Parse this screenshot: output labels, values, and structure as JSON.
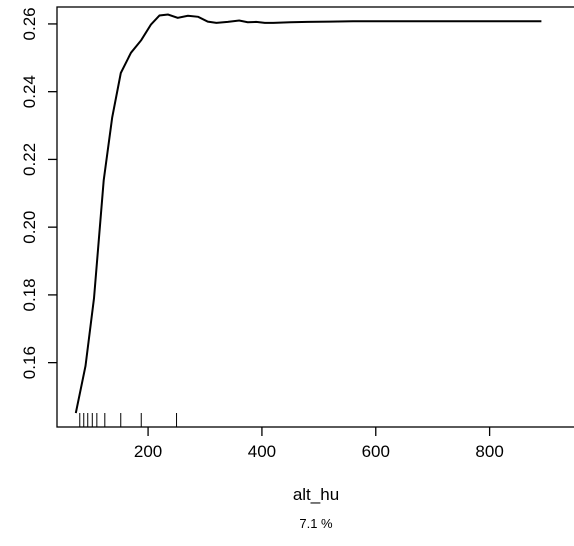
{
  "chart_data": {
    "type": "line",
    "xlabel": "alt_hu",
    "subtitle": "7.1 %",
    "ylabel": "",
    "xlim": [
      40,
      950
    ],
    "ylim": [
      0.141,
      0.265
    ],
    "xticks": [
      200,
      400,
      600,
      800
    ],
    "xtick_labels": [
      "200",
      "400",
      "600",
      "800"
    ],
    "yticks": [
      0.16,
      0.18,
      0.2,
      0.22,
      0.24,
      0.26
    ],
    "ytick_labels": [
      "0.16",
      "0.18",
      "0.20",
      "0.22",
      "0.24",
      "0.26"
    ],
    "grid": false,
    "series": [
      {
        "x": [
          73,
          90,
          105,
          122,
          137,
          152,
          170,
          188,
          205,
          220,
          235,
          252,
          270,
          288,
          305,
          320,
          340,
          360,
          375,
          390,
          405,
          420,
          450,
          480,
          520,
          560,
          600,
          640,
          700,
          760,
          820,
          891
        ],
        "y": [
          0.1451,
          0.159,
          0.179,
          0.2138,
          0.2324,
          0.2455,
          0.2515,
          0.2552,
          0.2598,
          0.2625,
          0.2628,
          0.2618,
          0.2624,
          0.2621,
          0.2607,
          0.2603,
          0.2606,
          0.261,
          0.2605,
          0.2606,
          0.2603,
          0.2603,
          0.2605,
          0.2606,
          0.2607,
          0.2608,
          0.2608,
          0.2608,
          0.2608,
          0.2608,
          0.2608,
          0.2608
        ]
      }
    ],
    "rug_x": [
      80,
      87,
      94,
      102,
      110,
      124,
      152,
      188,
      250
    ]
  }
}
